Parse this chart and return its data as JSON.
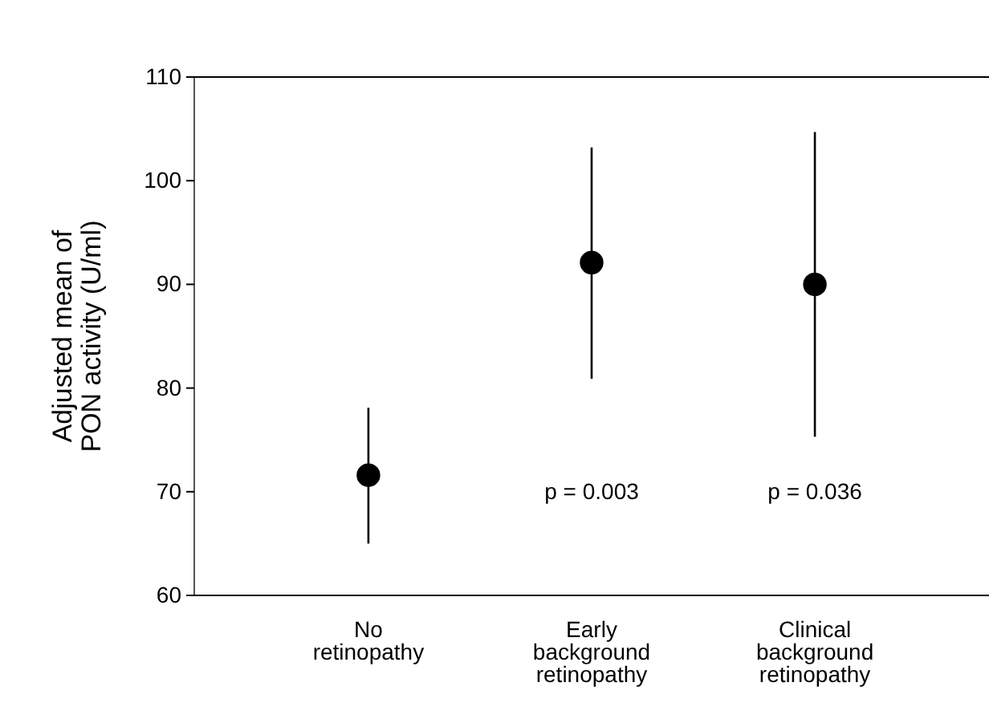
{
  "chart_data": {
    "type": "scatter",
    "ylabel": "Adjusted mean of PON activity (U/ml)",
    "categories": [
      "No retinopathy",
      "Early background retinopathy",
      "Clinical background retinopathy"
    ],
    "values": [
      71.6,
      92.1,
      90.0
    ],
    "errors": [
      [
        65.0,
        78.1
      ],
      [
        80.9,
        103.2
      ],
      [
        75.3,
        104.7
      ]
    ],
    "color": "#000000",
    "marker": "circle",
    "ylim": [
      60,
      110
    ],
    "yticks": [
      60,
      70,
      80,
      90,
      100,
      110
    ],
    "annotations": [
      "p = 0.003",
      "p = 0.036"
    ]
  }
}
